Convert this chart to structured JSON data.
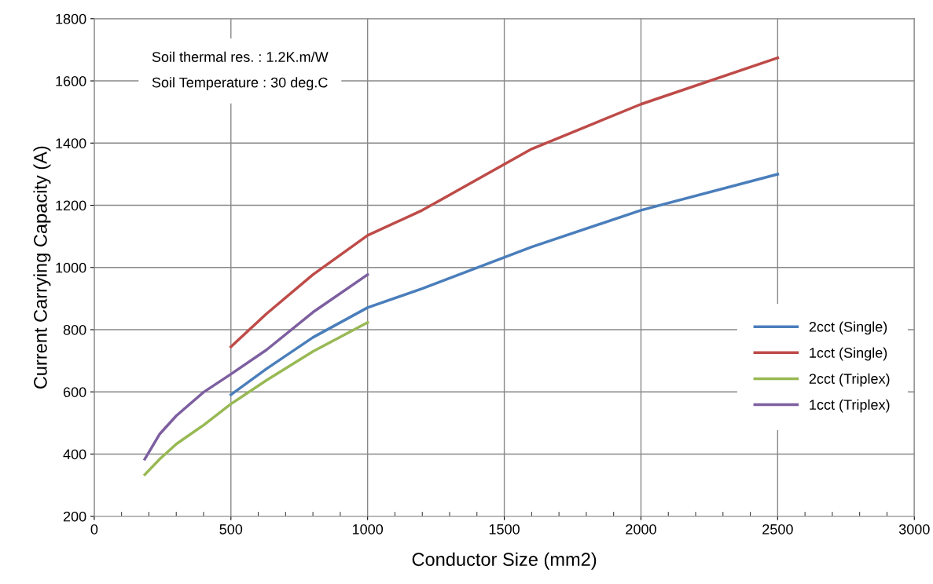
{
  "chart_data": {
    "type": "line",
    "xlabel": "Conductor Size (mm2)",
    "ylabel": "Current Carrying Capacity (A)",
    "xlim": [
      0,
      3000
    ],
    "xticks": [
      0,
      500,
      1000,
      1500,
      2000,
      2500,
      3000
    ],
    "ylim": [
      200,
      1800
    ],
    "yticks": [
      200,
      400,
      600,
      800,
      1000,
      1200,
      1400,
      1600,
      1800
    ],
    "grid": true,
    "legend": "right",
    "marker": "none",
    "line_style": "solid",
    "annotations": [
      "Soil thermal res. : 1.2K.m/W",
      "Soil Temperature : 30 deg.C"
    ],
    "series": [
      {
        "name": "2cct (Single)",
        "color": "#4a7ebb",
        "x": [
          500,
          630,
          800,
          1000,
          1200,
          1600,
          2000,
          2500
        ],
        "values": [
          591,
          674,
          775,
          871,
          932,
          1066,
          1184,
          1300
        ]
      },
      {
        "name": "1cct (Single)",
        "color": "#be4b48",
        "x": [
          500,
          630,
          800,
          1000,
          1200,
          1600,
          2000,
          2500
        ],
        "values": [
          745,
          851,
          977,
          1103,
          1184,
          1381,
          1525,
          1674
        ]
      },
      {
        "name": "2cct (Triplex)",
        "color": "#98b954",
        "x": [
          185,
          240,
          300,
          400,
          500,
          630,
          800,
          1000
        ],
        "values": [
          334,
          384,
          432,
          493,
          561,
          637,
          730,
          823
        ]
      },
      {
        "name": "1cct (Triplex)",
        "color": "#7d5fa0",
        "x": [
          185,
          240,
          300,
          400,
          500,
          630,
          800,
          1000
        ],
        "values": [
          384,
          465,
          523,
          599,
          657,
          735,
          856,
          977
        ]
      }
    ]
  }
}
